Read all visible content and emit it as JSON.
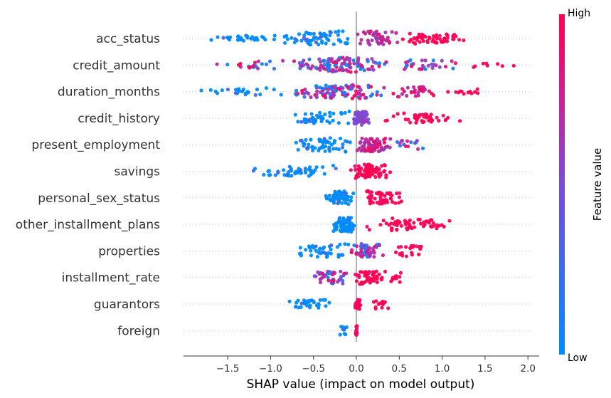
{
  "chart_data": {
    "type": "scatter",
    "subtype": "shap-beeswarm",
    "title": "",
    "xlabel": "SHAP value (impact on model output)",
    "xlim": [
      -2.0,
      2.1
    ],
    "xticks": [
      -1.5,
      -1.0,
      -0.5,
      0.0,
      0.5,
      1.0,
      1.5,
      2.0
    ],
    "xtick_labels": [
      "−1.5",
      "−1.0",
      "−0.5",
      "0.0",
      "0.5",
      "1.0",
      "1.5",
      "2.0"
    ],
    "colorbar": {
      "title": "Feature value",
      "high_label": "High",
      "low_label": "Low",
      "low_color": "#008bfb",
      "high_color": "#ff0052"
    },
    "features": [
      {
        "name": "acc_status",
        "spread": 0.9,
        "segments": [
          {
            "x_min": -1.8,
            "x_max": -0.9,
            "count": 30,
            "color": "low"
          },
          {
            "x_min": -0.9,
            "x_max": -0.02,
            "count": 60,
            "color": "low"
          },
          {
            "x_min": 0.0,
            "x_max": 0.5,
            "count": 45,
            "color": "mid-high"
          },
          {
            "x_min": 0.5,
            "x_max": 1.28,
            "count": 55,
            "color": "high"
          }
        ]
      },
      {
        "name": "credit_amount",
        "spread": 0.85,
        "segments": [
          {
            "x_min": -1.7,
            "x_max": -0.8,
            "count": 20,
            "color": "mixed"
          },
          {
            "x_min": -0.8,
            "x_max": 0.4,
            "count": 110,
            "color": "mixed"
          },
          {
            "x_min": 0.4,
            "x_max": 1.2,
            "count": 30,
            "color": "mixed"
          },
          {
            "x_min": 1.2,
            "x_max": 1.92,
            "count": 8,
            "color": "high"
          }
        ]
      },
      {
        "name": "duration_months",
        "spread": 0.8,
        "segments": [
          {
            "x_min": -1.83,
            "x_max": -0.8,
            "count": 25,
            "color": "low"
          },
          {
            "x_min": -0.8,
            "x_max": 0.4,
            "count": 100,
            "color": "mixed"
          },
          {
            "x_min": 0.4,
            "x_max": 1.0,
            "count": 30,
            "color": "mixed-high"
          },
          {
            "x_min": 1.0,
            "x_max": 1.5,
            "count": 12,
            "color": "high"
          }
        ]
      },
      {
        "name": "credit_history",
        "spread": 0.75,
        "segments": [
          {
            "x_min": -0.8,
            "x_max": -0.05,
            "count": 45,
            "color": "low"
          },
          {
            "x_min": -0.05,
            "x_max": 0.15,
            "count": 60,
            "color": "mid"
          },
          {
            "x_min": 0.3,
            "x_max": 1.25,
            "count": 45,
            "color": "high"
          }
        ]
      },
      {
        "name": "present_employment",
        "spread": 0.85,
        "segments": [
          {
            "x_min": -0.8,
            "x_max": -0.05,
            "count": 55,
            "color": "low"
          },
          {
            "x_min": 0.0,
            "x_max": 0.4,
            "count": 70,
            "color": "mid-high"
          },
          {
            "x_min": 0.4,
            "x_max": 0.8,
            "count": 15,
            "color": "mixed"
          }
        ]
      },
      {
        "name": "savings",
        "spread": 0.8,
        "segments": [
          {
            "x_min": -1.25,
            "x_max": -0.1,
            "count": 50,
            "color": "low"
          },
          {
            "x_min": -0.1,
            "x_max": 0.4,
            "count": 75,
            "color": "high"
          }
        ]
      },
      {
        "name": "personal_sex_status",
        "spread": 0.8,
        "segments": [
          {
            "x_min": -0.38,
            "x_max": -0.02,
            "count": 60,
            "color": "low"
          },
          {
            "x_min": 0.02,
            "x_max": 0.55,
            "count": 55,
            "color": "high"
          }
        ]
      },
      {
        "name": "other_installment_plans",
        "spread": 0.85,
        "segments": [
          {
            "x_min": -0.28,
            "x_max": 0.0,
            "count": 65,
            "color": "low"
          },
          {
            "x_min": 0.05,
            "x_max": 1.18,
            "count": 60,
            "color": "high"
          }
        ]
      },
      {
        "name": "properties",
        "spread": 0.8,
        "segments": [
          {
            "x_min": -0.72,
            "x_max": -0.05,
            "count": 40,
            "color": "low"
          },
          {
            "x_min": -0.1,
            "x_max": 0.35,
            "count": 60,
            "color": "mixed"
          },
          {
            "x_min": 0.35,
            "x_max": 0.88,
            "count": 20,
            "color": "high"
          }
        ]
      },
      {
        "name": "installment_rate",
        "spread": 0.75,
        "segments": [
          {
            "x_min": -0.52,
            "x_max": -0.05,
            "count": 40,
            "color": "mixed"
          },
          {
            "x_min": -0.05,
            "x_max": 0.35,
            "count": 55,
            "color": "high"
          },
          {
            "x_min": 0.35,
            "x_max": 0.55,
            "count": 10,
            "color": "high"
          }
        ]
      },
      {
        "name": "guarantors",
        "spread": 0.6,
        "segments": [
          {
            "x_min": -0.85,
            "x_max": -0.28,
            "count": 35,
            "color": "low"
          },
          {
            "x_min": -0.02,
            "x_max": 0.06,
            "count": 25,
            "color": "high"
          },
          {
            "x_min": 0.18,
            "x_max": 0.42,
            "count": 14,
            "color": "high"
          }
        ]
      },
      {
        "name": "foreign",
        "spread": 0.5,
        "segments": [
          {
            "x_min": -0.2,
            "x_max": -0.1,
            "count": 10,
            "color": "low"
          },
          {
            "x_min": -0.01,
            "x_max": 0.01,
            "count": 14,
            "color": "high"
          }
        ]
      }
    ]
  }
}
